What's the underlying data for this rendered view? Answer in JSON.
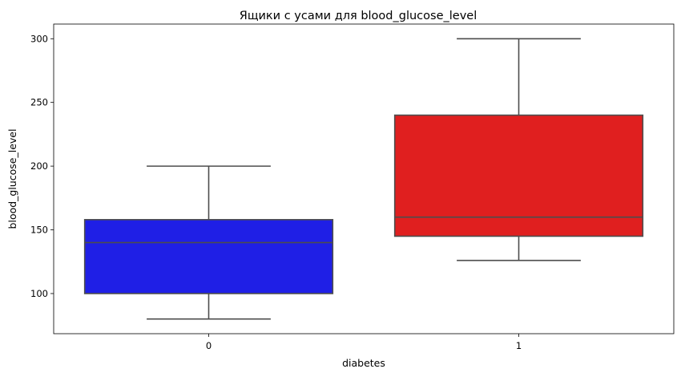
{
  "chart_data": {
    "type": "box",
    "title": "Ящики с усами для blood_glucose_level",
    "xlabel": "diabetes",
    "ylabel": "blood_glucose_level",
    "categories": [
      "0",
      "1"
    ],
    "boxes": [
      {
        "category": "0",
        "whisker_low": 80,
        "q1": 100,
        "median": 140,
        "q3": 158,
        "whisker_high": 200,
        "color": "#1f1fe6"
      },
      {
        "category": "1",
        "whisker_low": 126,
        "q1": 145,
        "median": 160,
        "q3": 240,
        "whisker_high": 300,
        "color": "#e01f1f"
      }
    ],
    "yticks": [
      100,
      150,
      200,
      250,
      300
    ],
    "ylim": [
      68.5,
      311.5
    ],
    "grid": false,
    "line_color": "#4d4d4d"
  }
}
